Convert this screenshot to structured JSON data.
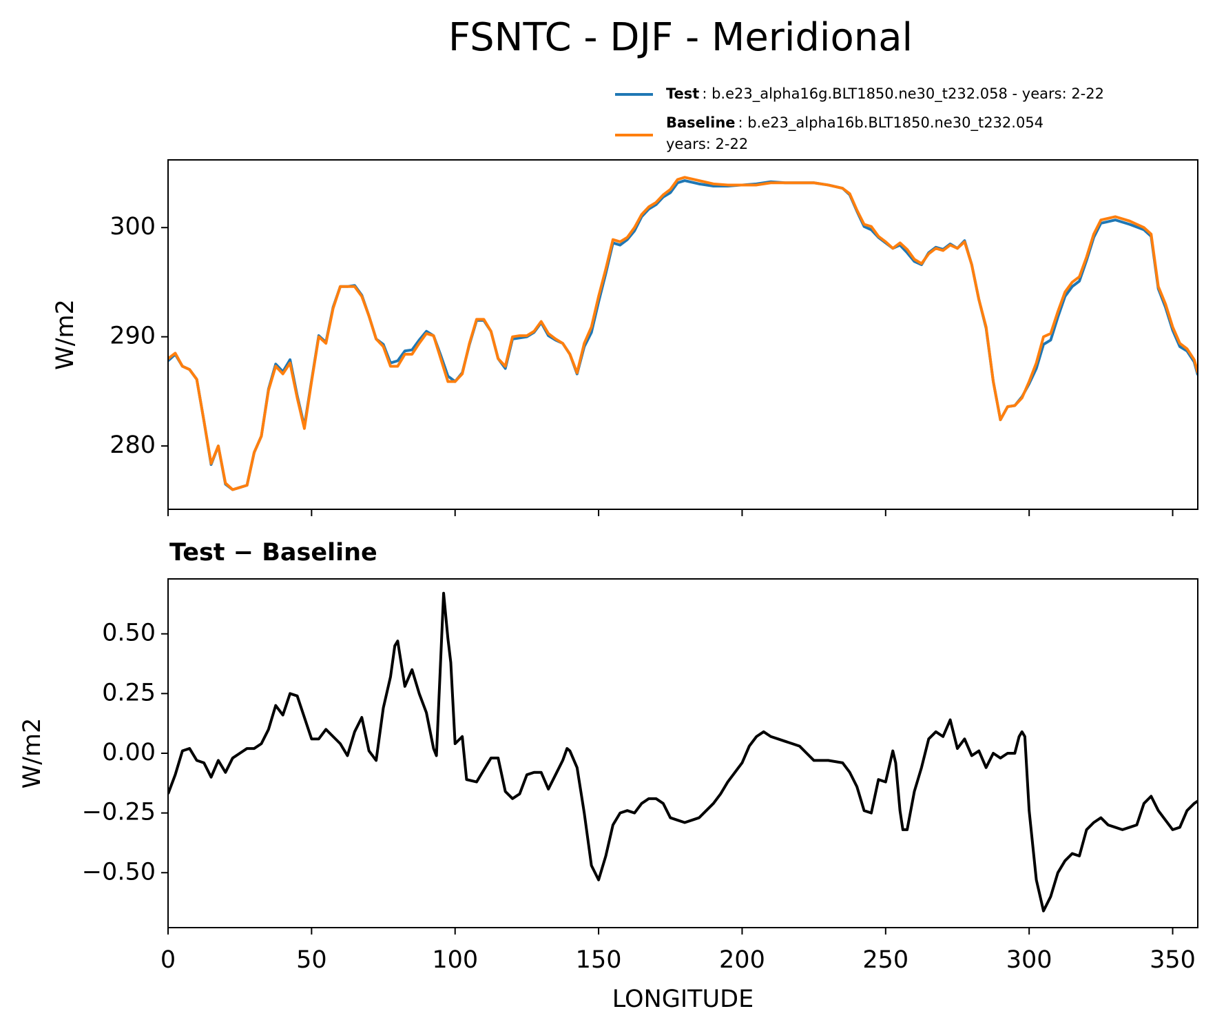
{
  "chart_data": [
    {
      "type": "line",
      "title": "FSNTC - DJF - Meridional",
      "ylabel": "W/m2",
      "xlim": [
        0,
        358.75
      ],
      "ylim": [
        274.2,
        306.2
      ],
      "xticks": [
        0,
        50,
        100,
        150,
        200,
        250,
        300,
        350
      ],
      "yticks": [
        280,
        290,
        300
      ],
      "legend": "upper right",
      "x": [
        0,
        2.5,
        5,
        7.5,
        10,
        12.5,
        15,
        17.5,
        20,
        22.5,
        25,
        27.5,
        30,
        32.5,
        35,
        37.5,
        40,
        42.5,
        45,
        47.5,
        50,
        52.5,
        55,
        57.5,
        60,
        62.5,
        65,
        67.5,
        70,
        72.5,
        75,
        77.5,
        80,
        82.5,
        85,
        87.5,
        90,
        92.5,
        95,
        97.5,
        100,
        102.5,
        105,
        107.5,
        110,
        112.5,
        115,
        117.5,
        120,
        122.5,
        125,
        127.5,
        130,
        132.5,
        135,
        137.5,
        140,
        142.5,
        145,
        147.5,
        150,
        152.5,
        155,
        157.5,
        160,
        162.5,
        165,
        167.5,
        170,
        172.5,
        175,
        177.5,
        180,
        185,
        190,
        195,
        200,
        205,
        210,
        215,
        220,
        225,
        230,
        235,
        237.5,
        240,
        242.5,
        245,
        247.5,
        250,
        252.5,
        255,
        257.5,
        260,
        262.5,
        265,
        267.5,
        270,
        272.5,
        275,
        277.5,
        280,
        282.5,
        285,
        287.5,
        290,
        292.5,
        295,
        297.5,
        300,
        302.5,
        305,
        307.5,
        310,
        312.5,
        315,
        317.5,
        320,
        322.5,
        325,
        330,
        335,
        340,
        342.5,
        345,
        347.5,
        350,
        352.5,
        355,
        357.5,
        358.75
      ],
      "series": [
        {
          "name": "Test",
          "label_lines": [
            ": b.e23_alpha16g.BLT1850.ne30_t232.058 - years: 2-22"
          ],
          "color": "#1f77b4",
          "values": [
            287.8,
            288.4,
            287.3,
            287.0,
            286.1,
            282.3,
            278.3,
            280.0,
            276.5,
            276.0,
            276.2,
            276.4,
            279.4,
            280.9,
            285.2,
            287.5,
            286.8,
            287.9,
            284.6,
            281.8,
            286.0,
            290.1,
            289.5,
            292.7,
            294.6,
            294.6,
            294.7,
            293.8,
            291.9,
            289.8,
            289.3,
            287.6,
            287.8,
            288.7,
            288.8,
            289.7,
            290.5,
            290.1,
            288.3,
            286.4,
            285.9,
            286.7,
            289.3,
            291.5,
            291.5,
            290.5,
            288.0,
            287.1,
            289.8,
            289.9,
            290.0,
            290.4,
            291.3,
            290.1,
            289.7,
            289.4,
            288.4,
            286.6,
            289.1,
            290.4,
            293.2,
            295.8,
            298.6,
            298.4,
            298.9,
            299.7,
            301.0,
            301.7,
            302.1,
            302.8,
            303.2,
            304.1,
            304.3,
            304.0,
            303.8,
            303.8,
            303.9,
            304.0,
            304.2,
            304.1,
            304.1,
            304.1,
            303.9,
            303.6,
            303.0,
            301.5,
            300.1,
            299.8,
            299.1,
            298.6,
            298.1,
            298.4,
            297.7,
            296.9,
            296.6,
            297.7,
            298.2,
            298.0,
            298.5,
            298.1,
            298.8,
            296.6,
            293.4,
            290.8,
            285.9,
            282.4,
            283.6,
            283.7,
            284.5,
            285.7,
            287.1,
            289.3,
            289.7,
            291.8,
            293.7,
            294.6,
            295.1,
            297.0,
            299.1,
            300.4,
            300.7,
            300.3,
            299.8,
            299.2,
            294.4,
            292.7,
            290.6,
            289.1,
            288.7,
            287.7,
            286.5
          ]
        },
        {
          "name": "Baseline",
          "label_lines": [
            ": b.e23_alpha16b.BLT1850.ne30_t232.054",
            "years: 2-22"
          ],
          "color": "#ff7f0e",
          "values": [
            288.0,
            288.5,
            287.3,
            287.0,
            286.1,
            282.3,
            278.4,
            280.0,
            276.6,
            276.0,
            276.2,
            276.4,
            279.4,
            280.9,
            285.1,
            287.3,
            286.6,
            287.6,
            284.4,
            281.6,
            285.9,
            290.0,
            289.4,
            292.6,
            294.6,
            294.6,
            294.6,
            293.7,
            291.9,
            289.8,
            289.1,
            287.3,
            287.3,
            288.4,
            288.4,
            289.4,
            290.3,
            290.1,
            288.0,
            285.9,
            285.9,
            286.6,
            289.4,
            291.6,
            291.6,
            290.5,
            288.0,
            287.3,
            290.0,
            290.1,
            290.1,
            290.5,
            291.4,
            290.3,
            289.8,
            289.4,
            288.4,
            286.7,
            289.4,
            290.9,
            293.7,
            296.2,
            298.9,
            298.7,
            299.1,
            300.0,
            301.2,
            301.9,
            302.3,
            303.0,
            303.5,
            304.4,
            304.6,
            304.3,
            304.0,
            303.9,
            303.9,
            303.9,
            304.1,
            304.1,
            304.1,
            304.1,
            303.9,
            303.6,
            303.1,
            301.6,
            300.3,
            300.1,
            299.2,
            298.7,
            298.1,
            298.6,
            298.0,
            297.1,
            296.7,
            297.6,
            298.1,
            297.9,
            298.4,
            298.1,
            298.7,
            296.6,
            293.4,
            290.9,
            285.9,
            282.4,
            283.6,
            283.7,
            284.4,
            285.9,
            287.6,
            290.0,
            290.3,
            292.3,
            294.1,
            295.0,
            295.5,
            297.3,
            299.4,
            300.7,
            301.0,
            300.6,
            300.0,
            299.4,
            294.6,
            293.0,
            290.9,
            289.4,
            288.9,
            287.9,
            286.7
          ]
        }
      ]
    },
    {
      "type": "line",
      "title": "Test − Baseline",
      "xlabel": "LONGITUDE",
      "ylabel": "W/m2",
      "xlim": [
        0,
        358.75
      ],
      "ylim": [
        -0.73,
        0.73
      ],
      "xticks": [
        0,
        50,
        100,
        150,
        200,
        250,
        300,
        350
      ],
      "yticks": [
        {
          "value": 0.5,
          "label": "0.50"
        },
        {
          "value": 0.25,
          "label": "0.25"
        },
        {
          "value": 0,
          "label": "0.00"
        },
        {
          "value": -0.25,
          "label": "−0.25"
        },
        {
          "value": -0.5,
          "label": "−0.50"
        }
      ],
      "x": [
        0,
        2.5,
        5,
        7.5,
        10,
        12.5,
        15,
        17.5,
        20,
        22.5,
        25,
        27.5,
        30,
        32.5,
        35,
        37.5,
        40,
        42.5,
        45,
        47.5,
        50,
        52.5,
        55,
        57.5,
        60,
        62.5,
        65,
        67.5,
        70,
        72.5,
        75,
        77.5,
        79,
        80,
        82.5,
        85,
        87.5,
        90,
        92.5,
        93.5,
        96,
        97.5,
        98.5,
        100,
        102.5,
        104,
        107.5,
        110,
        112.5,
        115,
        117.5,
        120,
        122.5,
        125,
        127.5,
        130,
        132.5,
        135,
        137.5,
        139,
        140,
        142.5,
        145,
        147.5,
        150,
        152.5,
        155,
        157.5,
        160,
        162.5,
        165,
        167.5,
        170,
        172.5,
        175,
        177.5,
        180,
        182.5,
        185,
        187.5,
        190,
        192.5,
        195,
        197.5,
        200,
        202.5,
        205,
        207.5,
        210,
        212.5,
        215,
        217.5,
        220,
        222.5,
        225,
        230,
        235,
        237.5,
        240,
        242.5,
        245,
        247.5,
        250,
        252.5,
        253.5,
        255,
        256,
        257.5,
        260,
        262.5,
        265,
        267.5,
        270,
        272.5,
        275,
        277.5,
        280,
        282.5,
        285,
        287.5,
        290,
        292.5,
        295,
        296.5,
        297.5,
        298.5,
        300,
        302.5,
        305,
        307.5,
        310,
        312.5,
        315,
        317.5,
        320,
        322.5,
        325,
        327.5,
        330,
        332.5,
        335,
        337.5,
        340,
        342.5,
        345,
        347.5,
        350,
        352.5,
        355,
        357.5,
        358.75
      ],
      "series": [
        {
          "color": "#000000",
          "values": [
            -0.17,
            -0.09,
            0.01,
            0.02,
            -0.03,
            -0.04,
            -0.1,
            -0.03,
            -0.08,
            -0.02,
            0.0,
            0.02,
            0.02,
            0.04,
            0.1,
            0.2,
            0.16,
            0.25,
            0.24,
            0.15,
            0.06,
            0.06,
            0.1,
            0.07,
            0.04,
            -0.01,
            0.09,
            0.15,
            0.01,
            -0.03,
            0.19,
            0.32,
            0.45,
            0.47,
            0.28,
            0.35,
            0.25,
            0.17,
            0.02,
            -0.01,
            0.67,
            0.48,
            0.38,
            0.04,
            0.07,
            -0.11,
            -0.12,
            -0.07,
            -0.02,
            -0.02,
            -0.16,
            -0.19,
            -0.17,
            -0.09,
            -0.08,
            -0.08,
            -0.15,
            -0.09,
            -0.03,
            0.02,
            0.01,
            -0.06,
            -0.25,
            -0.47,
            -0.53,
            -0.43,
            -0.3,
            -0.25,
            -0.24,
            -0.25,
            -0.21,
            -0.19,
            -0.19,
            -0.21,
            -0.27,
            -0.28,
            -0.29,
            -0.28,
            -0.27,
            -0.24,
            -0.21,
            -0.17,
            -0.12,
            -0.08,
            -0.04,
            0.03,
            0.07,
            0.09,
            0.07,
            0.06,
            0.05,
            0.04,
            0.03,
            0.0,
            -0.03,
            -0.03,
            -0.04,
            -0.08,
            -0.14,
            -0.24,
            -0.25,
            -0.11,
            -0.12,
            0.01,
            -0.04,
            -0.24,
            -0.32,
            -0.32,
            -0.16,
            -0.06,
            0.06,
            0.09,
            0.07,
            0.14,
            0.02,
            0.06,
            -0.01,
            0.01,
            -0.06,
            0.0,
            -0.02,
            0.0,
            0.0,
            0.07,
            0.09,
            0.07,
            -0.24,
            -0.53,
            -0.66,
            -0.6,
            -0.5,
            -0.45,
            -0.42,
            -0.43,
            -0.32,
            -0.29,
            -0.27,
            -0.3,
            -0.31,
            -0.32,
            -0.31,
            -0.3,
            -0.21,
            -0.18,
            -0.24,
            -0.28,
            -0.32,
            -0.31,
            -0.24,
            -0.21,
            -0.2
          ]
        }
      ]
    }
  ]
}
